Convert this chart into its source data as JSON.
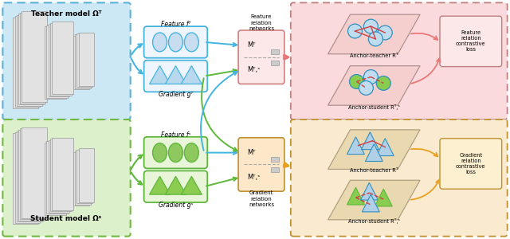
{
  "teacher_label": "Teacher model Ωᵀ",
  "student_label": "Student model Ωˢ",
  "feat_net_label": "Feature\nrelation\nnetworks",
  "grad_net_label": "Gradient\nrelation\nnetworks",
  "teacher_feat_label": "Feature fᵀ",
  "teacher_grad_label": "Gradient gᵀ",
  "student_feat_label": "Feature fˢ",
  "student_grad_label": "Gradient gˢ",
  "mt_label": "Mᵀ",
  "mts_label": "Mᵀ,ˢ",
  "anchor_teacher_label": "Anchor-teacher Rᵀ",
  "anchor_student_label": "Anchor-student Rᵀ,ˢ",
  "feat_loss_label": "Feature\nrelation\ncontrastive\nloss",
  "grad_loss_label": "Gradient\nrelation\ncontrastive\nloss",
  "blue": "#45b5e0",
  "green": "#5db83a",
  "pink": "#e87878",
  "orange": "#e8a020",
  "teacher_bg": "#cce8f5",
  "student_bg": "#ddf0cc",
  "feat_panel_bg": "#fadadc",
  "grad_panel_bg": "#faebd0",
  "feat_net_bg": "#fce8e8",
  "grad_net_bg": "#fce8c8"
}
